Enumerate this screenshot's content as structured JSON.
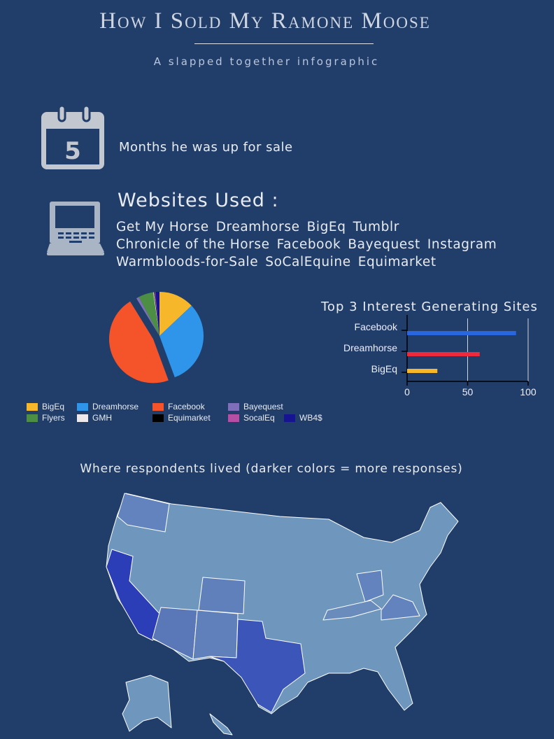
{
  "header": {
    "title": "How I Sold My Ramone Moose",
    "subtitle": "A slapped together infographic"
  },
  "months": {
    "value": "5",
    "label": "Months he was up for sale",
    "icon": "calendar-icon"
  },
  "websites": {
    "title": "Websites Used :",
    "icon": "laptop-icon",
    "lines": [
      [
        "Get My Horse",
        "Dreamhorse",
        "BigEq",
        "Tumblr"
      ],
      [
        "Chronicle of the Horse",
        "Facebook",
        "Bayequest",
        "Instagram"
      ],
      [
        "Warmbloods-for-Sale",
        "SoCalEquine",
        "Equimarket"
      ]
    ]
  },
  "chart_data": [
    {
      "type": "pie",
      "categories": [
        "BigEq",
        "Dreamhorse",
        "Facebook",
        "Bayequest",
        "Flyers",
        "GMH",
        "Equimarket",
        "SocalEq",
        "WB4$"
      ],
      "values": [
        13,
        31.5,
        47,
        1,
        5.5,
        0.3,
        0.2,
        0.3,
        1.5
      ],
      "colors": [
        "#f6b72b",
        "#2e95ea",
        "#f5532a",
        "#7f6fba",
        "#4b8e44",
        "#ece8ec",
        "#000000",
        "#b54ea5",
        "#161490"
      ],
      "exploded": "Facebook",
      "legend": [
        "BigEq",
        "Dreamhorse",
        "Facebook",
        "Bayequest",
        "Flyers",
        "GMH",
        "Equimarket",
        "SocalEq",
        "WB4$"
      ],
      "legend_position": "bottom"
    },
    {
      "type": "bar",
      "orientation": "horizontal",
      "title": "Top 3 Interest Generating Sites",
      "categories": [
        "Facebook",
        "Dreamhorse",
        "BigEq"
      ],
      "values": [
        90,
        60,
        25
      ],
      "colors": [
        "#2a66e0",
        "#ef2a3c",
        "#f6b72b"
      ],
      "xlim": [
        0,
        100
      ],
      "xticks": [
        "0",
        "50",
        "100"
      ],
      "grid": true
    }
  ],
  "map": {
    "title": "Where respondents lived (darker colors = more responses)",
    "base_color": "#6f97bd",
    "highlighted": {
      "California": "#2c3db8",
      "Texas": "#3b55b8",
      "Arizona": "#5a78b8",
      "New Mexico": "#5f80bb",
      "Colorado": "#5f80bb",
      "Washington": "#6283bd",
      "Ohio": "#6283bd",
      "Virginia": "#6283bd",
      "Kentucky": "#6a8cbd"
    }
  }
}
